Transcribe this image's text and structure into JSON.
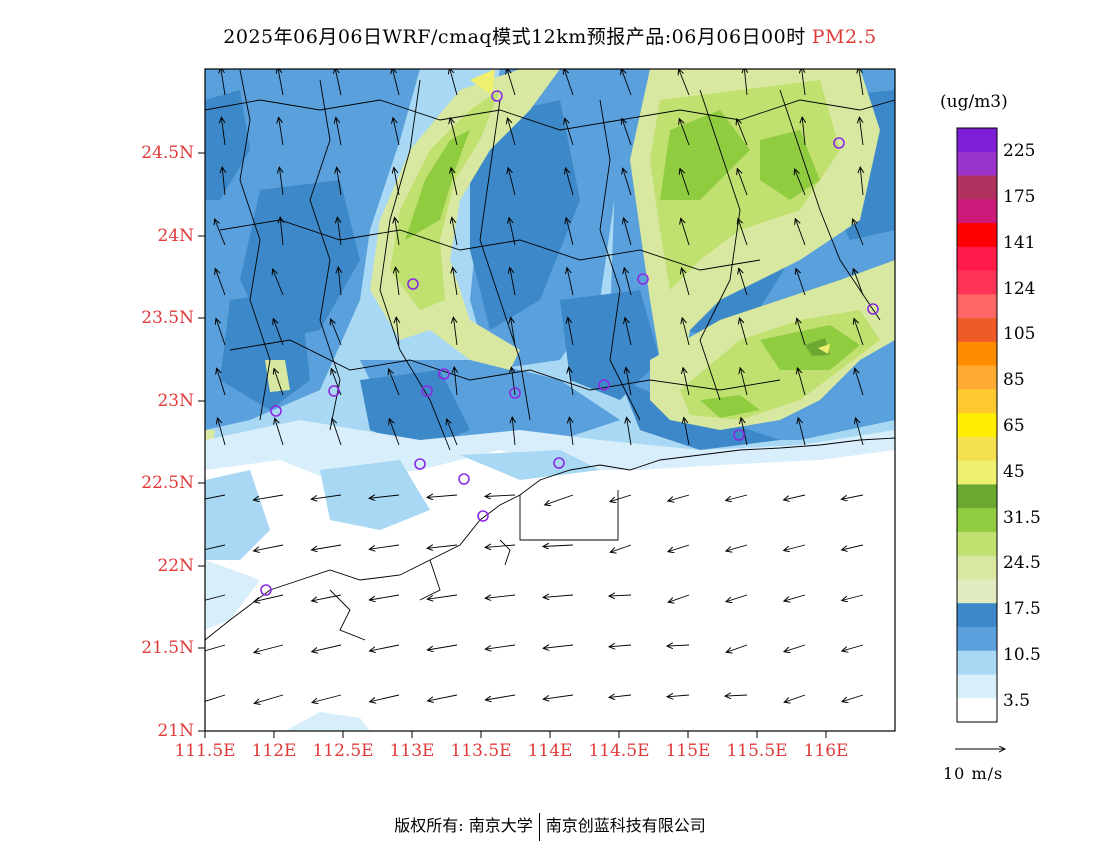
{
  "title": {
    "text": "2025年06月06日WRF/cmaq模式12km预报产品:06月06日00时",
    "variable": "PM2.5"
  },
  "map": {
    "lat_labels": [
      "24.5N",
      "24N",
      "23.5N",
      "23N",
      "22.5N",
      "22N",
      "21.5N",
      "21N"
    ],
    "lon_labels": [
      "111.5E",
      "112E",
      "112.5E",
      "113E",
      "113.5E",
      "114E",
      "114.5E",
      "115E",
      "115.5E",
      "116E"
    ],
    "lat_range": [
      21,
      25
    ],
    "lon_range": [
      111.5,
      116.5
    ],
    "wind_reference": "10 m/s",
    "station_marker": "purple-circle"
  },
  "colorbar": {
    "unit": "(ug/m3)",
    "labels": [
      "225",
      "175",
      "141",
      "124",
      "105",
      "85",
      "65",
      "45",
      "31.5",
      "24.5",
      "17.5",
      "10.5",
      "3.5"
    ],
    "colors": [
      "#7c1fd6",
      "#9933cc",
      "#b03060",
      "#cc1a7a",
      "#ff0000",
      "#ff1a4a",
      "#ff3355",
      "#ff6666",
      "#f05a28",
      "#ff8c00",
      "#ffaa33",
      "#ffc830",
      "#ffee00",
      "#f5e050",
      "#f0f070",
      "#6aa832",
      "#90cc40",
      "#c0e070",
      "#d8e8a0",
      "#e0ecc0",
      "#3d88c8",
      "#5aa0dc",
      "#a8d8f4",
      "#d8eefa",
      "#ffffff"
    ]
  },
  "footer": {
    "left": "版权所有: 南京大学",
    "right": "南京创蓝科技有限公司"
  }
}
